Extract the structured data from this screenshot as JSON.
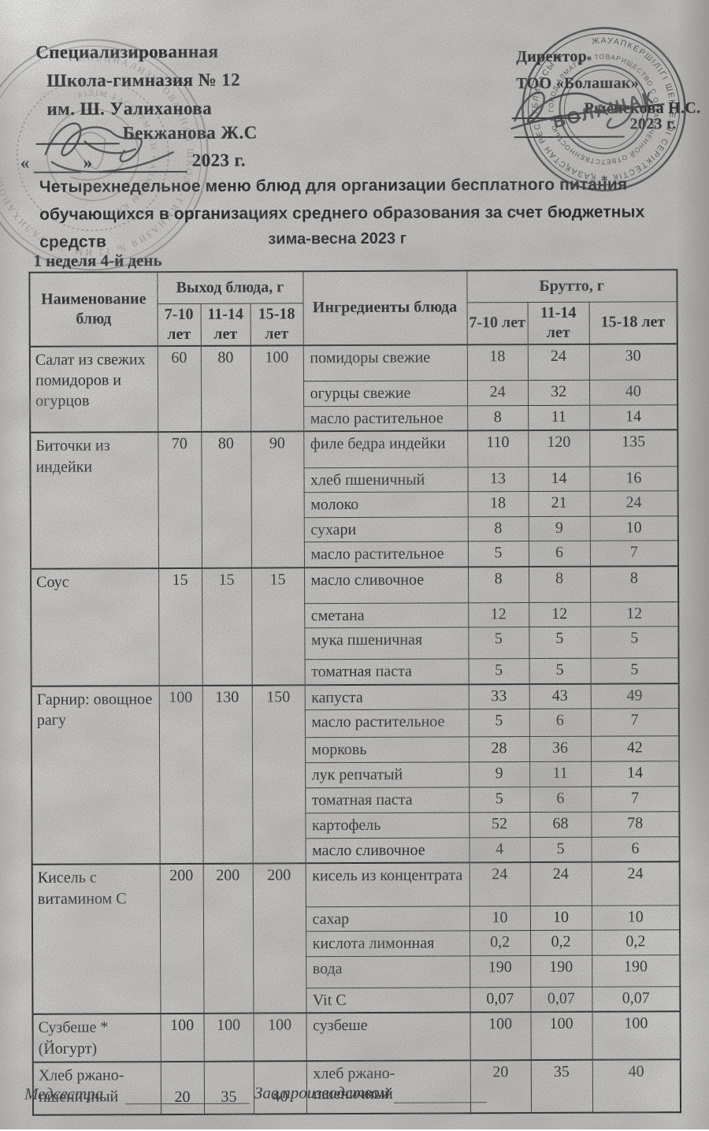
{
  "colors": {
    "paper": "#cac8c5",
    "ink": "#232327",
    "stamp_ink": "#2c2c31"
  },
  "header_left": {
    "line1": "Специализированная",
    "line2": "Школа-гимназия № 12",
    "line3": "им. Ш. Уалиханова",
    "signer": "Бекжанова Ж.С",
    "quote_open": "«",
    "quote_close": "»",
    "year": "2023 г."
  },
  "header_right": {
    "line1": "Директор",
    "line2": "ТОО «Болашак»",
    "signer": "Рыспекова Н.С.",
    "year": "2023 г."
  },
  "stamps": {
    "left": {
      "ring_outer": "• СПЕЦИАЛИЗИРОВАННАЯ ШКОЛА-ГИМНАЗИЯ № 12 ИМ. Ш. УАЛИХАНОВА •",
      "ring_inner": "БІЛІМ БАСҚАРМАСЫ • АЛМАТЫ ҚАЛАСЫ •"
    },
    "right": {
      "ring_outer": "ЖАУАПКЕРШІЛІГІ ШЕКТЕУЛІ СЕРІКТЕСТІК ✱ ҚАЗАҚСТАН РЕСПУБЛИКАСЫ ✱",
      "ring_inner": "ТОВАРИЩЕСТВО С ОГРАНИЧЕННОЙ ОТВЕТСТВЕННОСТЬЮ ✱ ГОРОД АЛМАТЫ ✱",
      "center": "БОЛАШАК"
    }
  },
  "title": "Четырехнедельное меню блюд для организации бесплатного питания обучающихся в организациях среднего образования за счет бюджетных средств",
  "season": "зима-весна 2023 г",
  "week_label": "1 неделя 4-й день",
  "table": {
    "col_name": "Наименование блюд",
    "col_out_group": "Выход блюда, г",
    "col_ingredients": "Ингредиенты блюда",
    "col_brutto_group": "Брутто, г",
    "age_cols": [
      "7-10 лет",
      "11-14 лет",
      "15-18 лет"
    ],
    "rows": [
      {
        "dish": "Салат из свежих помидоров и огурцов",
        "out": [
          "60",
          "80",
          "100"
        ],
        "ingredients": [
          {
            "name": "помидоры свежие",
            "b": [
              "18",
              "24",
              "30"
            ]
          },
          {
            "name": "огурцы свежие",
            "b": [
              "24",
              "32",
              "40"
            ]
          },
          {
            "name": "масло растительное",
            "b": [
              "8",
              "11",
              "14"
            ]
          }
        ]
      },
      {
        "dish": "Биточки из индейки",
        "out": [
          "70",
          "80",
          "90"
        ],
        "ingredients": [
          {
            "name": "филе бедра индейки",
            "b": [
              "110",
              "120",
              "135"
            ]
          },
          {
            "name": "хлеб пшеничный",
            "b": [
              "13",
              "14",
              "16"
            ]
          },
          {
            "name": "молоко",
            "b": [
              "18",
              "21",
              "24"
            ]
          },
          {
            "name": "сухари",
            "b": [
              "8",
              "9",
              "10"
            ]
          },
          {
            "name": "масло растительное",
            "b": [
              "5",
              "6",
              "7"
            ]
          }
        ]
      },
      {
        "dish": "Соус",
        "out": [
          "15",
          "15",
          "15"
        ],
        "ingredients": [
          {
            "name": "масло сливочное",
            "b": [
              "8",
              "8",
              "8"
            ]
          },
          {
            "name": "сметана",
            "b": [
              "12",
              "12",
              "12"
            ]
          },
          {
            "name": "мука пшеничная",
            "b": [
              "5",
              "5",
              "5"
            ]
          },
          {
            "name": "томатная паста",
            "b": [
              "5",
              "5",
              "5"
            ]
          }
        ]
      },
      {
        "dish": "Гарнир: овощное рагу",
        "out": [
          "100",
          "130",
          "150"
        ],
        "ingredients": [
          {
            "name": "капуста",
            "b": [
              "33",
              "43",
              "49"
            ]
          },
          {
            "name": "масло растительное",
            "b": [
              "5",
              "6",
              "7"
            ]
          },
          {
            "name": "морковь",
            "b": [
              "28",
              "36",
              "42"
            ]
          },
          {
            "name": "лук репчатый",
            "b": [
              "9",
              "11",
              "14"
            ]
          },
          {
            "name": "томатная паста",
            "b": [
              "5",
              "6",
              "7"
            ]
          },
          {
            "name": "картофель",
            "b": [
              "52",
              "68",
              "78"
            ]
          },
          {
            "name": "масло сливочное",
            "b": [
              "4",
              "5",
              "6"
            ]
          }
        ]
      },
      {
        "dish": "Кисель с витамином С",
        "out": [
          "200",
          "200",
          "200"
        ],
        "ingredients": [
          {
            "name": "кисель из концентрата",
            "b": [
              "24",
              "24",
              "24"
            ]
          },
          {
            "name": "сахар",
            "b": [
              "10",
              "10",
              "10"
            ]
          },
          {
            "name": "кислота лимонная",
            "b": [
              "0,2",
              "0,2",
              "0,2"
            ]
          },
          {
            "name": "вода",
            "b": [
              "190",
              "190",
              "190"
            ]
          },
          {
            "name": "Vit C",
            "b": [
              "0,07",
              "0,07",
              "0,07"
            ]
          }
        ]
      },
      {
        "dish": "Сузбеше *(Йогурт)",
        "out": [
          "100",
          "100",
          "100"
        ],
        "ingredients": [
          {
            "name": "сузбеше",
            "b": [
              "100",
              "100",
              "100"
            ]
          }
        ]
      },
      {
        "dish": "Хлеб ржано-пшеничный",
        "out": [
          "20",
          "35",
          "40"
        ],
        "ingredients": [
          {
            "name": "хлеб ржано-пшеничный",
            "b": [
              "20",
              "35",
              "40"
            ]
          }
        ]
      }
    ]
  },
  "footer": {
    "nurse_label": "Медсестра",
    "production_label": "Зав.производством"
  }
}
